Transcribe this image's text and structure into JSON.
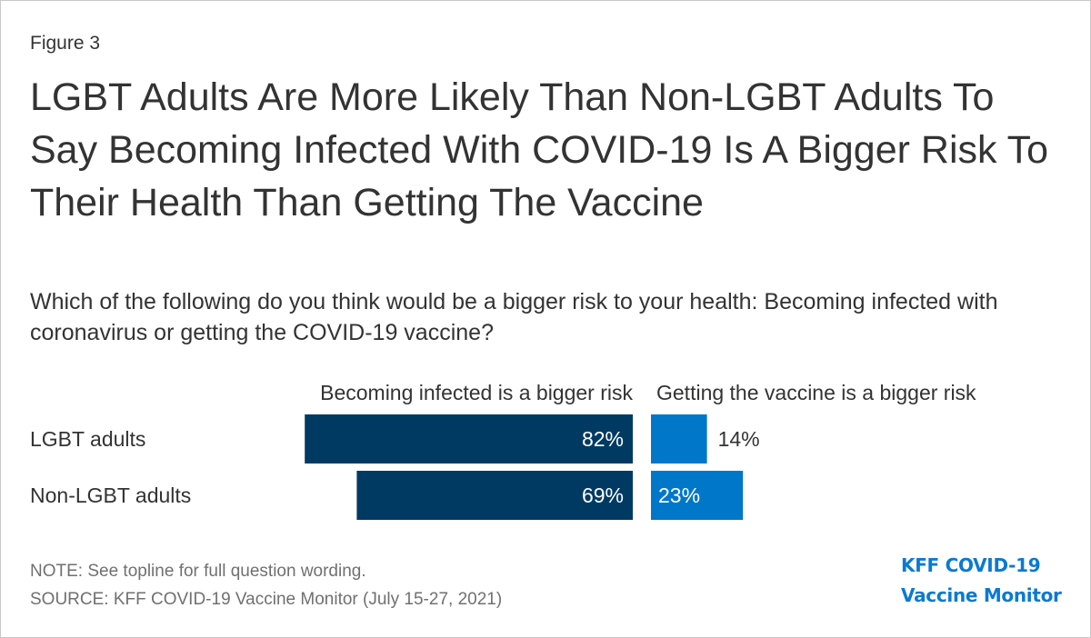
{
  "figure_label": "Figure 3",
  "title": "LGBT Adults Are More Likely Than Non-LGBT Adults To Say Becoming Infected With COVID-19 Is A Bigger Risk To Their Health Than Getting The Vaccine",
  "subtitle": "Which of the following do you think would be a bigger risk to your health: Becoming infected with coronavirus or getting the COVID-19 vaccine?",
  "note": "NOTE: See topline for full question wording.",
  "source": "SOURCE: KFF COVID-19 Vaccine Monitor (July 15-27, 2021)",
  "brand": {
    "line1": "KFF COVID-19",
    "line2": "Vaccine Monitor"
  },
  "colors": {
    "infected": "#003a63",
    "vaccine": "#0077c8",
    "text": "#333333",
    "note": "#707070"
  },
  "chart_data": {
    "type": "bar",
    "orientation": "horizontal-diverging",
    "categories": [
      "LGBT adults",
      "Non-LGBT adults"
    ],
    "series": [
      {
        "name": "Becoming infected is a bigger risk",
        "values": [
          82,
          69
        ],
        "labels": [
          "82%",
          "69%"
        ]
      },
      {
        "name": "Getting the vaccine is a bigger risk",
        "values": [
          14,
          23
        ],
        "labels": [
          "14%",
          "23%"
        ]
      }
    ],
    "unit": "%"
  }
}
